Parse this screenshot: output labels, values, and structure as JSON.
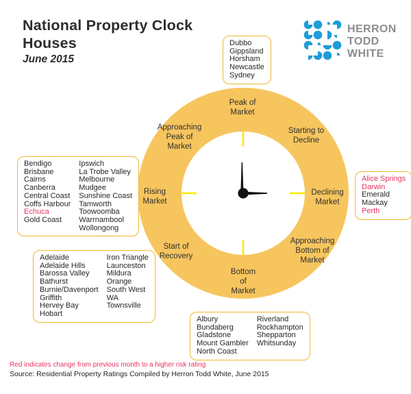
{
  "header": {
    "title_line1": "National Property Clock",
    "title_line2": "Houses",
    "date": "June 2015"
  },
  "logo": {
    "words": [
      "HERRON",
      "TODD",
      "WHITE"
    ],
    "dot_color": "#1e9cd7",
    "text_color": "#8b8d90"
  },
  "clock": {
    "stages": {
      "peak": "Peak of\nMarket",
      "starting_to_decline": "Starting to\nDecline",
      "declining": "Declining\nMarket",
      "approaching_bottom": "Approaching\nBottom of\nMarket",
      "bottom": "Bottom\nof\nMarket",
      "start_of_recovery": "Start of\nRecovery",
      "rising": "Rising\nMarket",
      "approaching_peak": "Approaching\nPeak of\nMarket"
    },
    "hands": {
      "minute": "12 o'clock",
      "hour": "3 o'clock"
    },
    "colors": {
      "ring": "#f7c55e",
      "tick": "#ffe800",
      "hands": "#111111"
    }
  },
  "boxes": {
    "top": {
      "columns": [
        [
          {
            "t": "Dubbo"
          },
          {
            "t": "Gippsland"
          },
          {
            "t": "Horsham"
          },
          {
            "t": "Newcastle"
          },
          {
            "t": "Sydney"
          }
        ]
      ]
    },
    "left": {
      "columns": [
        [
          {
            "t": "Bendigo"
          },
          {
            "t": "Brisbane"
          },
          {
            "t": "Cairns"
          },
          {
            "t": "Canberra"
          },
          {
            "t": "Central Coast"
          },
          {
            "t": "Coffs Harbour"
          },
          {
            "t": "Echuca",
            "red": true
          },
          {
            "t": "Gold Coast"
          }
        ],
        [
          {
            "t": "Ipswich"
          },
          {
            "t": "La Trobe Valley"
          },
          {
            "t": "Melbourne"
          },
          {
            "t": "Mudgee"
          },
          {
            "t": "Sunshine Coast"
          },
          {
            "t": "Tamworth"
          },
          {
            "t": "Toowoomba"
          },
          {
            "t": "Warrnambool"
          },
          {
            "t": "Wollongong"
          }
        ]
      ]
    },
    "right": {
      "columns": [
        [
          {
            "t": "Alice Springs",
            "red": true
          },
          {
            "t": "Darwin",
            "red": true
          },
          {
            "t": "Emerald"
          },
          {
            "t": "Mackay"
          },
          {
            "t": "Perth",
            "red": true
          }
        ]
      ]
    },
    "bottom_left": {
      "columns": [
        [
          {
            "t": "Adelaide"
          },
          {
            "t": "Adelaide Hills"
          },
          {
            "t": "Barossa Valley"
          },
          {
            "t": "Bathurst"
          },
          {
            "t": "Burnie/Davenport"
          },
          {
            "t": "Griffith"
          },
          {
            "t": "Hervey Bay"
          },
          {
            "t": "Hobart"
          }
        ],
        [
          {
            "t": "Iron Triangle"
          },
          {
            "t": "Launceston"
          },
          {
            "t": "Mildura"
          },
          {
            "t": "Orange"
          },
          {
            "t": "South West\nWA"
          },
          {
            "t": "Townsville"
          }
        ]
      ]
    },
    "bottom": {
      "columns": [
        [
          {
            "t": "Albury"
          },
          {
            "t": "Bundaberg"
          },
          {
            "t": "Gladstone"
          },
          {
            "t": "Mount Gambler"
          },
          {
            "t": "North Coast"
          }
        ],
        [
          {
            "t": "Riverland"
          },
          {
            "t": "Rockhampton"
          },
          {
            "t": "Shepparton"
          },
          {
            "t": "Whitsunday"
          }
        ]
      ]
    }
  },
  "footer": {
    "note": "Red indicates change from previous month to a higher risk rating",
    "source": "Source: Residential Property Ratings Compiled by Herron Todd White, June 2015"
  },
  "colors": {
    "risk_red": "#e73363",
    "box_border": "#efb730",
    "ring_gold": "#f7c55e"
  }
}
